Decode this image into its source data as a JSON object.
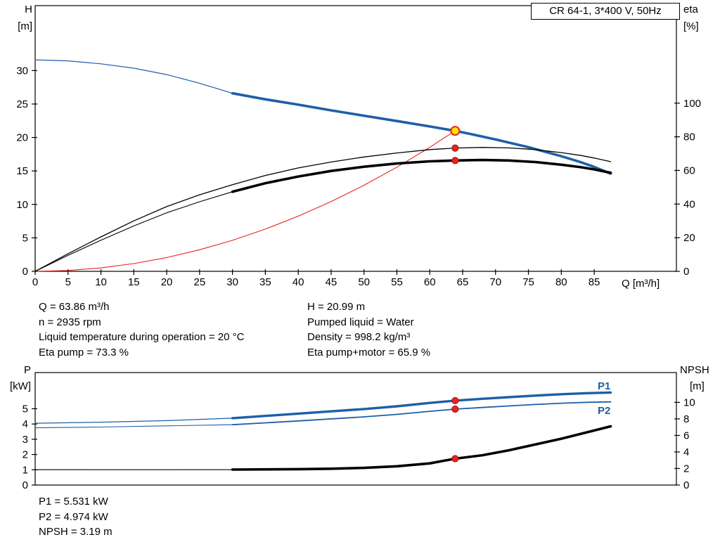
{
  "header": {
    "title_box": "CR 64-1, 3*400 V, 50Hz"
  },
  "annotations": {
    "left": [
      "Q = 63.86 m³/h",
      "n = 2935 rpm",
      "Liquid temperature during operation = 20 °C",
      "Eta pump = 73.3 %"
    ],
    "right": [
      "H = 20.99 m",
      "Pumped liquid = Water",
      "Density = 998.2 kg/m³",
      "Eta pump+motor = 65.9 %"
    ]
  },
  "results": [
    "P1 = 5.531 kW",
    "P2 = 4.974 kW",
    "NPSH = 3.19 m"
  ],
  "colors": {
    "curve_blue": "#1e5fa8",
    "curve_black": "#000000",
    "curve_red": "#e8231e",
    "duty_yellow": "#ffe400"
  },
  "chart_data": [
    {
      "type": "line",
      "title": "CR 64-1, 3*400 V, 50Hz",
      "x_axis": {
        "label": "Q [m³/h]",
        "min": 0,
        "max": 97.5,
        "ticks": [
          0,
          5,
          10,
          15,
          20,
          25,
          30,
          35,
          40,
          45,
          50,
          55,
          60,
          65,
          70,
          75,
          80,
          85
        ]
      },
      "y_left": {
        "name": "H",
        "unit": "[m]",
        "min": 0,
        "max": 39.7,
        "ticks": [
          0,
          5,
          10,
          15,
          20,
          25,
          30
        ]
      },
      "y_right": {
        "name": "eta",
        "unit": "[%]",
        "min": 0,
        "max": 158,
        "ticks": [
          0,
          20,
          40,
          60,
          80,
          100
        ]
      },
      "grid": false,
      "series": [
        {
          "name": "head-curve-low-flow",
          "axis": "left",
          "color": "#1e5fa8",
          "width": 1.2,
          "points": [
            [
              0,
              31.6
            ],
            [
              5,
              31.45
            ],
            [
              10,
              31.0
            ],
            [
              15,
              30.35
            ],
            [
              20,
              29.4
            ],
            [
              25,
              28.1
            ],
            [
              30,
              26.6
            ]
          ]
        },
        {
          "name": "head-curve",
          "axis": "left",
          "color": "#1e5fa8",
          "width": 3.6,
          "points": [
            [
              30,
              26.6
            ],
            [
              35,
              25.7
            ],
            [
              40,
              24.9
            ],
            [
              45,
              24.05
            ],
            [
              50,
              23.25
            ],
            [
              55,
              22.45
            ],
            [
              60,
              21.65
            ],
            [
              63.86,
              20.99
            ],
            [
              66,
              20.55
            ],
            [
              70,
              19.7
            ],
            [
              75,
              18.55
            ],
            [
              80,
              17.2
            ],
            [
              83,
              16.3
            ],
            [
              85,
              15.6
            ],
            [
              87.5,
              14.6
            ]
          ]
        },
        {
          "name": "system-curve",
          "axis": "left",
          "color": "#e8231e",
          "width": 1.1,
          "points": [
            [
              0,
              0
            ],
            [
              5,
              0.13
            ],
            [
              10,
              0.51
            ],
            [
              15,
              1.16
            ],
            [
              20,
              2.06
            ],
            [
              25,
              3.22
            ],
            [
              30,
              4.63
            ],
            [
              35,
              6.31
            ],
            [
              40,
              8.24
            ],
            [
              45,
              10.42
            ],
            [
              50,
              12.87
            ],
            [
              55,
              15.57
            ],
            [
              60,
              18.53
            ],
            [
              63.86,
              20.99
            ]
          ]
        },
        {
          "name": "eta-pump-curve",
          "axis": "right",
          "color": "#000000",
          "width": 1.3,
          "points": [
            [
              0,
              0
            ],
            [
              5,
              10.5
            ],
            [
              10,
              20.5
            ],
            [
              15,
              30
            ],
            [
              20,
              38.5
            ],
            [
              25,
              45.5
            ],
            [
              30,
              51.5
            ],
            [
              35,
              57
            ],
            [
              40,
              61.5
            ],
            [
              45,
              65
            ],
            [
              50,
              68
            ],
            [
              55,
              70.4
            ],
            [
              60,
              72.4
            ],
            [
              63.86,
              73.3
            ],
            [
              68,
              73.7
            ],
            [
              72,
              73.4
            ],
            [
              76,
              72.4
            ],
            [
              80,
              70.6
            ],
            [
              83,
              68.9
            ],
            [
              85,
              67.4
            ],
            [
              87.5,
              65.2
            ]
          ]
        },
        {
          "name": "eta-pump-motor-curve-low-flow",
          "axis": "right",
          "color": "#000000",
          "width": 1.1,
          "points": [
            [
              0,
              0
            ],
            [
              5,
              9.5
            ],
            [
              10,
              18.5
            ],
            [
              15,
              27
            ],
            [
              20,
              34.8
            ],
            [
              25,
              41.4
            ],
            [
              30,
              47.3
            ]
          ]
        },
        {
          "name": "eta-pump-motor-curve",
          "axis": "right",
          "color": "#000000",
          "width": 3.6,
          "points": [
            [
              30,
              47.3
            ],
            [
              35,
              52.4
            ],
            [
              40,
              56.4
            ],
            [
              45,
              59.7
            ],
            [
              50,
              62.2
            ],
            [
              55,
              64.1
            ],
            [
              60,
              65.4
            ],
            [
              63.86,
              65.9
            ],
            [
              68,
              66.2
            ],
            [
              72,
              65.9
            ],
            [
              76,
              65.0
            ],
            [
              80,
              63.4
            ],
            [
              83,
              61.9
            ],
            [
              85,
              60.6
            ],
            [
              87.5,
              58.6
            ]
          ]
        }
      ],
      "markers": [
        {
          "name": "duty-point-marker",
          "axis": "left",
          "x": 63.86,
          "y": 20.99,
          "r": 6,
          "fill": "#ffe400",
          "stroke": "#e8231e",
          "stroke_width": 2
        },
        {
          "name": "eta-pump-point",
          "axis": "right",
          "x": 63.86,
          "y": 73.3,
          "r": 4.6,
          "fill": "#e8231e",
          "stroke": "#a61212",
          "stroke_width": 1
        },
        {
          "name": "eta-pump-motor-point",
          "axis": "right",
          "x": 63.86,
          "y": 65.9,
          "r": 4.6,
          "fill": "#e8231e",
          "stroke": "#a61212",
          "stroke_width": 1
        }
      ]
    },
    {
      "type": "line",
      "x_axis": {
        "label": "",
        "min": 0,
        "max": 97.5,
        "ticks": []
      },
      "y_left": {
        "name": "P",
        "unit": "[kW]",
        "min": 0,
        "max": 7.37,
        "ticks": [
          0,
          1,
          2,
          3,
          4,
          5
        ]
      },
      "y_right": {
        "name": "NPSH",
        "unit": "[m]",
        "min": 0,
        "max": 13.6,
        "ticks": [
          0,
          2,
          4,
          6,
          8,
          10
        ]
      },
      "grid": false,
      "series_labels": [
        "P1",
        "P2"
      ],
      "series": [
        {
          "name": "p1-curve-low-flow",
          "axis": "left",
          "color": "#1e5fa8",
          "width": 1.2,
          "points": [
            [
              0,
              4.05
            ],
            [
              10,
              4.12
            ],
            [
              20,
              4.22
            ],
            [
              30,
              4.38
            ]
          ]
        },
        {
          "name": "p1-curve",
          "axis": "left",
          "color": "#1e5fa8",
          "width": 3.4,
          "points": [
            [
              30,
              4.38
            ],
            [
              40,
              4.68
            ],
            [
              50,
              4.98
            ],
            [
              55,
              5.16
            ],
            [
              60,
              5.38
            ],
            [
              63.86,
              5.531
            ],
            [
              68,
              5.65
            ],
            [
              72,
              5.76
            ],
            [
              76,
              5.86
            ],
            [
              80,
              5.95
            ],
            [
              84,
              6.02
            ],
            [
              87.5,
              6.06
            ]
          ]
        },
        {
          "name": "p2-curve-low-flow",
          "axis": "left",
          "color": "#1e5fa8",
          "width": 1.1,
          "points": [
            [
              0,
              3.75
            ],
            [
              10,
              3.8
            ],
            [
              20,
              3.88
            ],
            [
              30,
              3.95
            ]
          ]
        },
        {
          "name": "p2-curve",
          "axis": "left",
          "color": "#1e5fa8",
          "width": 1.8,
          "points": [
            [
              30,
              3.95
            ],
            [
              40,
              4.2
            ],
            [
              50,
              4.47
            ],
            [
              55,
              4.63
            ],
            [
              60,
              4.83
            ],
            [
              63.86,
              4.974
            ],
            [
              68,
              5.08
            ],
            [
              72,
              5.18
            ],
            [
              76,
              5.28
            ],
            [
              80,
              5.36
            ],
            [
              84,
              5.42
            ],
            [
              87.5,
              5.45
            ]
          ]
        },
        {
          "name": "npsh-curve-low-flow",
          "axis": "right",
          "color": "#000000",
          "width": 1.2,
          "points": [
            [
              0,
              1.85
            ],
            [
              15,
              1.85
            ],
            [
              30,
              1.85
            ]
          ]
        },
        {
          "name": "npsh-curve",
          "axis": "right",
          "color": "#000000",
          "width": 3.6,
          "points": [
            [
              30,
              1.87
            ],
            [
              40,
              1.92
            ],
            [
              45,
              1.97
            ],
            [
              50,
              2.07
            ],
            [
              55,
              2.27
            ],
            [
              60,
              2.62
            ],
            [
              63.86,
              3.19
            ],
            [
              68,
              3.6
            ],
            [
              72,
              4.2
            ],
            [
              76,
              4.9
            ],
            [
              80,
              5.6
            ],
            [
              84,
              6.4
            ],
            [
              87.5,
              7.1
            ]
          ]
        }
      ],
      "markers": [
        {
          "name": "p1-point",
          "axis": "left",
          "x": 63.86,
          "y": 5.531,
          "r": 4.6,
          "fill": "#e8231e",
          "stroke": "#a61212",
          "stroke_width": 1
        },
        {
          "name": "p2-point",
          "axis": "left",
          "x": 63.86,
          "y": 4.974,
          "r": 4.6,
          "fill": "#e8231e",
          "stroke": "#a61212",
          "stroke_width": 1
        },
        {
          "name": "npsh-point",
          "axis": "right",
          "x": 63.86,
          "y": 3.19,
          "r": 4.6,
          "fill": "#e8231e",
          "stroke": "#a61212",
          "stroke_width": 1
        }
      ]
    }
  ]
}
